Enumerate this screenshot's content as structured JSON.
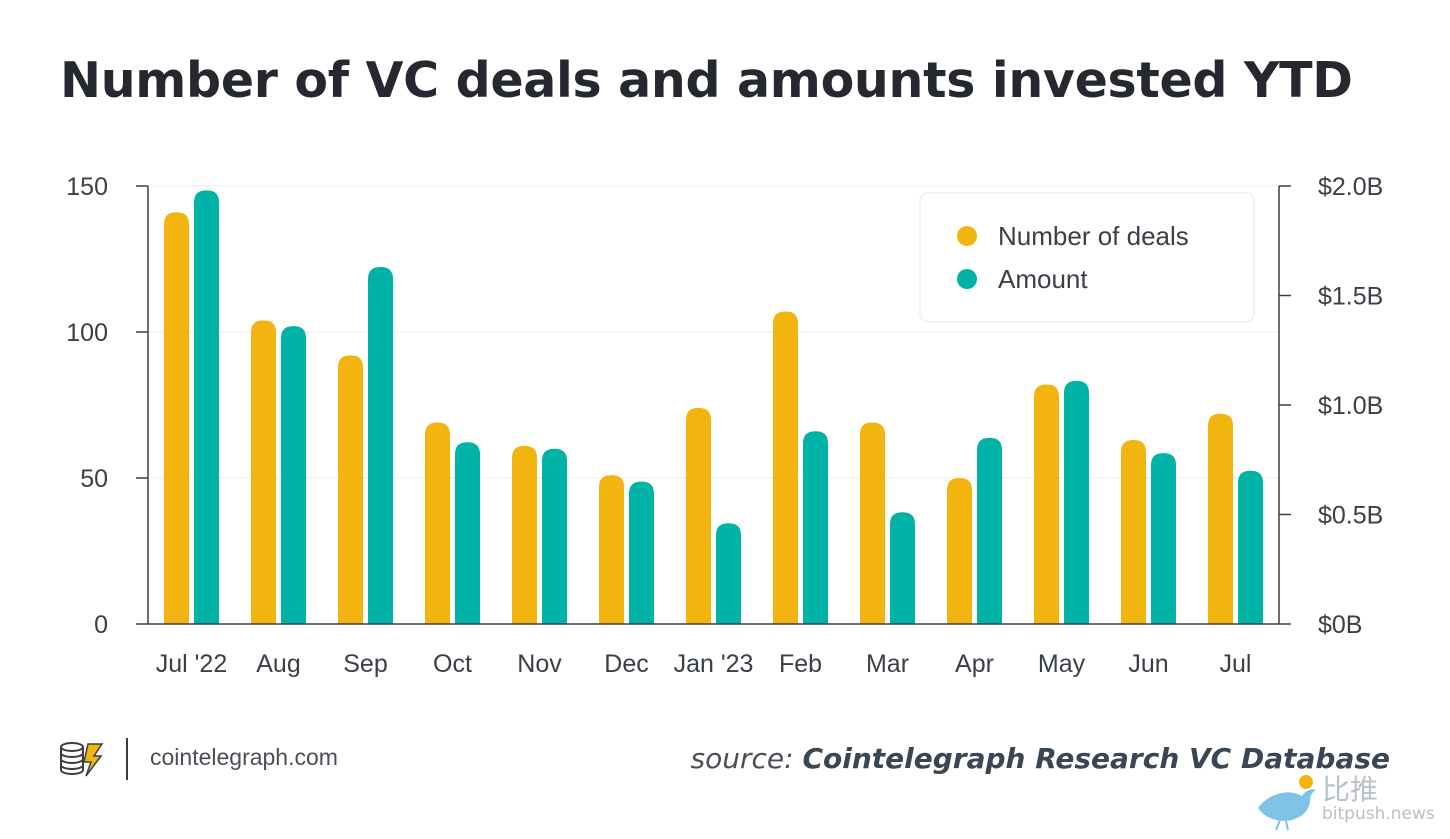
{
  "header": {
    "title": "Number of VC deals and amounts invested YTD"
  },
  "footer": {
    "site": "cointelegraph.com",
    "source_prefix": "source:",
    "source_name": "Cointelegraph Research VC Database",
    "logo_icon": "coin-stack-lightning-icon"
  },
  "watermark": {
    "cn": "比推",
    "url": "bitpush.news",
    "icon": "bird-icon"
  },
  "chart_data": {
    "type": "bar",
    "title": "Number of VC deals and amounts invested YTD",
    "xlabel": "",
    "ylabel": "",
    "categories": [
      "Jul '22",
      "Aug",
      "Sep",
      "Oct",
      "Nov",
      "Dec",
      "Jan '23",
      "Feb",
      "Mar",
      "Apr",
      "May",
      "Jun",
      "Jul"
    ],
    "series": [
      {
        "name": "Number of deals",
        "axis": "left",
        "color": "#f2b50f",
        "values": [
          141,
          104,
          92,
          69,
          61,
          51,
          74,
          107,
          69,
          50,
          82,
          63,
          72
        ]
      },
      {
        "name": "Amount",
        "axis": "right",
        "unit": "USD billions",
        "color": "#00b3a7",
        "values": [
          1.98,
          1.36,
          1.63,
          0.83,
          0.8,
          0.65,
          0.46,
          0.88,
          0.51,
          0.85,
          1.11,
          0.78,
          0.7
        ]
      }
    ],
    "y_left": {
      "min": 0,
      "max": 150,
      "ticks": [
        0,
        50,
        100,
        150
      ],
      "tick_labels": [
        "0",
        "50",
        "100",
        "150"
      ]
    },
    "y_right": {
      "min": 0,
      "max": 2.0,
      "ticks": [
        0,
        0.5,
        1.0,
        1.5,
        2.0
      ],
      "tick_labels": [
        "$0B",
        "$0.5B",
        "$1.0B",
        "$1.5B",
        "$2.0B"
      ]
    },
    "grid": true,
    "legend": {
      "placement": "top-right",
      "entries": [
        "Number of deals",
        "Amount"
      ]
    }
  }
}
